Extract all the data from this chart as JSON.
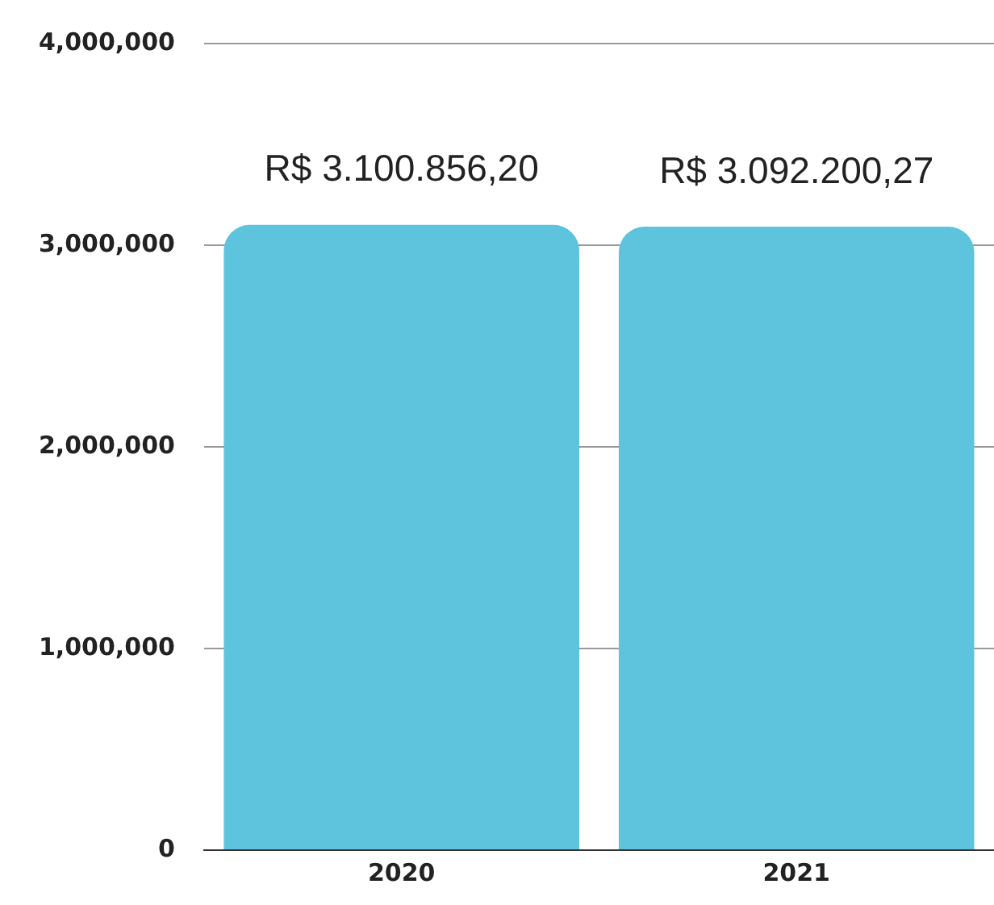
{
  "chart_data": {
    "type": "bar",
    "categories": [
      "2020",
      "2021"
    ],
    "values": [
      3100856.2,
      3092200.27
    ],
    "color": "#5ec4de",
    "value_labels": [
      "R$ 3.100.856,20",
      "R$ 3.092.200,27"
    ],
    "ylim": [
      0,
      4000000
    ],
    "yticks": [
      {
        "value": 0,
        "label": "0"
      },
      {
        "value": 1000000,
        "label": "1,000,000"
      },
      {
        "value": 2000000,
        "label": "2,000,000"
      },
      {
        "value": 3000000,
        "label": "3,000,000"
      },
      {
        "value": 4000000,
        "label": "4,000,000"
      }
    ],
    "grid": "y",
    "legend": false
  }
}
